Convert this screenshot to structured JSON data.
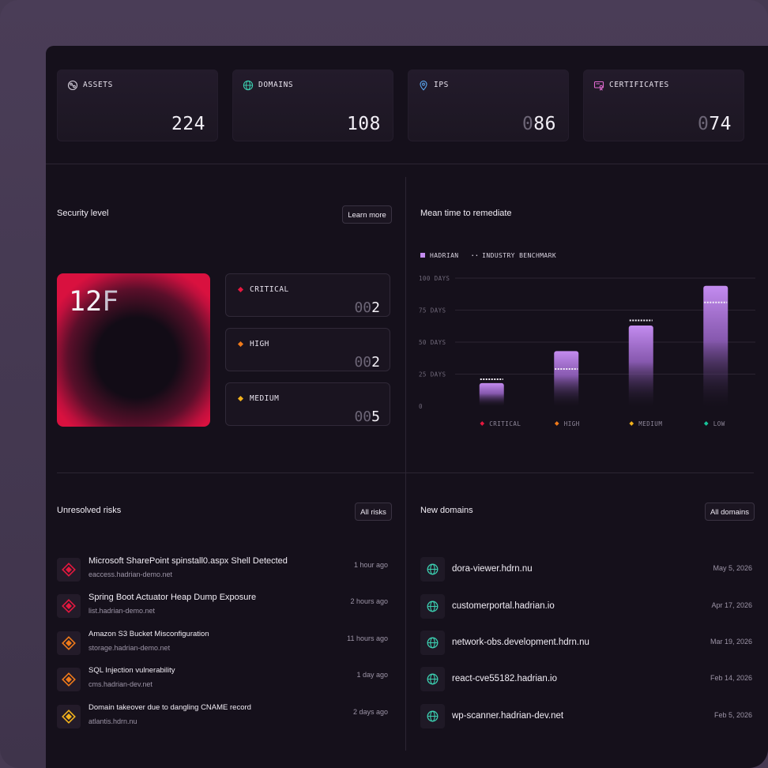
{
  "stats": [
    {
      "label": "ASSETS",
      "value_dim": "",
      "value": "224",
      "icon": "globe-network-icon"
    },
    {
      "label": "DOMAINS",
      "value_dim": "",
      "value": "108",
      "icon": "globe-icon"
    },
    {
      "label": "IPS",
      "value_dim": "0",
      "value": "86",
      "icon": "map-pin-icon"
    },
    {
      "label": "CERTIFICATES",
      "value_dim": "0",
      "value": "74",
      "icon": "certificate-icon"
    }
  ],
  "security": {
    "title": "Security level",
    "learn_more": "Learn more",
    "grade_num": "12",
    "grade_letter": "F",
    "levels": [
      {
        "name": "CRITICAL",
        "dim": "00",
        "value": "2",
        "color": "#e5183f"
      },
      {
        "name": "HIGH",
        "dim": "00",
        "value": "2",
        "color": "#f07a1a"
      },
      {
        "name": "MEDIUM",
        "dim": "00",
        "value": "5",
        "color": "#f2b21c"
      }
    ]
  },
  "mttr": {
    "title": "Mean time to remediate",
    "legend_hadrian": "HADRIAN",
    "legend_benchmark": "INDUSTRY BENCHMARK"
  },
  "chart_data": {
    "type": "bar",
    "categories": [
      "CRITICAL",
      "HIGH",
      "MEDIUM",
      "LOW"
    ],
    "category_colors": [
      "#e5183f",
      "#f07a1a",
      "#f2b21c",
      "#18c49a"
    ],
    "series": [
      {
        "name": "HADRIAN",
        "values": [
          18,
          43,
          63,
          94
        ],
        "color": "#b37be8"
      },
      {
        "name": "INDUSTRY BENCHMARK",
        "values": [
          21,
          29,
          67,
          81
        ],
        "style": "dashed"
      }
    ],
    "yticks": [
      "100 DAYS",
      "75 DAYS",
      "50 DAYS",
      "25 DAYS",
      "0"
    ],
    "ylim": [
      0,
      100
    ]
  },
  "risks": {
    "title": "Unresolved risks",
    "button": "All risks",
    "items": [
      {
        "title": "Microsoft SharePoint spinstall0.aspx Shell Detected",
        "host": "eaccess.hadrian-demo.net",
        "time": "1 hour ago",
        "color": "#e5183f",
        "size": "11px"
      },
      {
        "title": "Spring Boot Actuator Heap Dump Exposure",
        "host": "list.hadrian-demo.net",
        "time": "2 hours ago",
        "color": "#e5183f",
        "size": "11px"
      },
      {
        "title": "Amazon S3 Bucket Misconfiguration",
        "host": "storage.hadrian-demo.net",
        "time": "11 hours ago",
        "color": "#f07a1a",
        "size": "9.5px"
      },
      {
        "title": "SQL Injection vulnerability",
        "host": "cms.hadrian-dev.net",
        "time": "1 day ago",
        "color": "#f07a1a",
        "size": "9.5px"
      },
      {
        "title": "Domain takeover due to dangling CNAME record",
        "host": "atlantis.hdrn.nu",
        "time": "2 days ago",
        "color": "#f2b21c",
        "size": "9.5px"
      }
    ]
  },
  "domains": {
    "title": "New domains",
    "button": "All domains",
    "items": [
      {
        "name": "dora-viewer.hdrn.nu",
        "date": "May 5, 2026"
      },
      {
        "name": "customerportal.hadrian.io",
        "date": "Apr 17, 2026"
      },
      {
        "name": "network-obs.development.hdrn.nu",
        "date": "Mar 19, 2026"
      },
      {
        "name": "react-cve55182.hadrian.io",
        "date": "Feb 14, 2026"
      },
      {
        "name": "wp-scanner.hadrian-dev.net",
        "date": "Feb 5, 2026"
      }
    ]
  }
}
